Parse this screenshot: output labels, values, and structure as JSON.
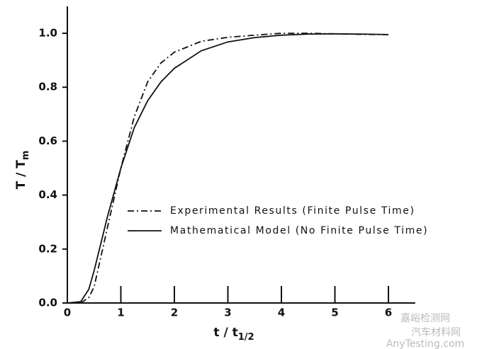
{
  "chart_data": {
    "type": "line",
    "ylabel_main": "T / T",
    "ylabel_sub": "m",
    "xlabel_main": "t / t",
    "xlabel_sub": "1/2",
    "x": [
      0,
      0.25,
      0.4,
      0.5,
      0.75,
      1,
      1.25,
      1.5,
      1.75,
      2,
      2.5,
      3,
      3.5,
      4,
      4.5,
      5,
      5.5,
      6
    ],
    "series": [
      {
        "name": "Experimental Results (Finite Pulse Time)",
        "color": "#111111",
        "dash": "dashdot",
        "values": [
          0,
          0,
          0.02,
          0.06,
          0.28,
          0.5,
          0.69,
          0.82,
          0.89,
          0.93,
          0.97,
          0.985,
          0.993,
          1.0,
          1.0,
          0.998,
          0.996,
          0.995
        ]
      },
      {
        "name": "Mathematical Model (No Finite Pulse Time)",
        "color": "#111111",
        "dash": "solid",
        "values": [
          0,
          0.005,
          0.05,
          0.12,
          0.32,
          0.5,
          0.65,
          0.75,
          0.82,
          0.87,
          0.935,
          0.968,
          0.984,
          0.993,
          0.997,
          0.998,
          0.997,
          0.995
        ]
      }
    ],
    "xlim": [
      0,
      6.5
    ],
    "ylim": [
      0,
      1.1
    ],
    "xticks": [
      0,
      1,
      2,
      3,
      4,
      5,
      6
    ],
    "yticks": [
      {
        "value": 0,
        "label": "0.0"
      },
      0.2,
      0.4,
      0.6,
      0.8,
      {
        "value": 1,
        "label": "1.0"
      }
    ],
    "grid": false,
    "watermark": [
      "嘉峪检测网",
      "汽车材料网",
      "AnyTesting.com"
    ]
  }
}
